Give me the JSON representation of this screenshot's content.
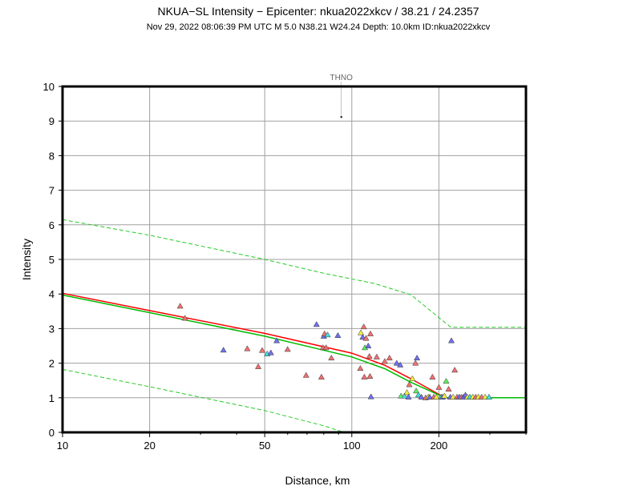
{
  "chart_data": {
    "type": "scatter",
    "title": "NKUA−SL Intensity −  Epicenter: nkua2022xkcv / 38.21 / 24.2357",
    "subtitle": "Nov 29, 2022 08:06:39 PM UTC   M 5.0   N38.21 W24.24   Depth: 10.0km   ID:nkua2022xkcv",
    "xlabel": "Distance, km",
    "ylabel": "Intensity",
    "xscale": "log",
    "xlim": [
      10,
      400
    ],
    "ylim": [
      0,
      10
    ],
    "xticks": [
      10,
      20,
      50,
      100,
      200
    ],
    "yticks": [
      0,
      1,
      2,
      3,
      4,
      5,
      6,
      7,
      8,
      9,
      10
    ],
    "grid": true,
    "colors": {
      "red_line": "#ff0000",
      "green_line": "#00bb00",
      "dashed": "#22cc22",
      "tri_red": "#f07070",
      "tri_blue": "#7070f0",
      "tri_yellow": "#f0f040",
      "tri_cyan": "#40e0e0",
      "tri_green": "#60f060"
    },
    "annotations": [
      {
        "text": "THNO",
        "x": 92,
        "y": 9.1
      }
    ],
    "lines": [
      {
        "style": "solid",
        "color": "#ff0000",
        "x": [
          10,
          20,
          50,
          100,
          130,
          160,
          210,
          400
        ],
        "y": [
          4.02,
          3.52,
          2.86,
          2.29,
          1.94,
          1.55,
          1.0,
          1.0
        ]
      },
      {
        "style": "solid",
        "color": "#00bb00",
        "x": [
          10,
          20,
          50,
          100,
          130,
          160,
          210,
          400
        ],
        "y": [
          3.97,
          3.46,
          2.78,
          2.18,
          1.84,
          1.45,
          1.0,
          1.0
        ]
      },
      {
        "style": "dashed",
        "color": "#22cc22",
        "x": [
          10,
          20,
          50,
          80,
          120,
          160,
          220,
          400
        ],
        "y": [
          6.15,
          5.7,
          5.0,
          4.6,
          4.3,
          3.98,
          3.04,
          3.04
        ]
      },
      {
        "style": "dashed",
        "color": "#22cc22",
        "x": [
          10,
          20,
          50,
          80,
          94
        ],
        "y": [
          1.82,
          1.32,
          0.63,
          0.19,
          0.0
        ]
      }
    ],
    "points": [
      {
        "x": 92,
        "y": 9.12,
        "c": "dot"
      },
      {
        "x": 25.5,
        "y": 3.65,
        "c": "red"
      },
      {
        "x": 26.5,
        "y": 3.3,
        "c": "red"
      },
      {
        "x": 36,
        "y": 2.38,
        "c": "blue"
      },
      {
        "x": 43.5,
        "y": 2.42,
        "c": "red"
      },
      {
        "x": 47.5,
        "y": 1.9,
        "c": "red"
      },
      {
        "x": 49,
        "y": 2.37,
        "c": "red"
      },
      {
        "x": 51,
        "y": 2.27,
        "c": "cyan"
      },
      {
        "x": 52.5,
        "y": 2.3,
        "c": "blue"
      },
      {
        "x": 55,
        "y": 2.65,
        "c": "blue"
      },
      {
        "x": 60,
        "y": 2.4,
        "c": "red"
      },
      {
        "x": 69.5,
        "y": 1.65,
        "c": "red"
      },
      {
        "x": 75.5,
        "y": 3.12,
        "c": "blue"
      },
      {
        "x": 78.5,
        "y": 1.6,
        "c": "red"
      },
      {
        "x": 79.5,
        "y": 2.45,
        "c": "red"
      },
      {
        "x": 80,
        "y": 2.78,
        "c": "blue"
      },
      {
        "x": 80.5,
        "y": 2.85,
        "c": "red"
      },
      {
        "x": 81.5,
        "y": 2.45,
        "c": "red"
      },
      {
        "x": 82.5,
        "y": 2.82,
        "c": "cyan"
      },
      {
        "x": 85,
        "y": 2.15,
        "c": "red"
      },
      {
        "x": 89.5,
        "y": 2.8,
        "c": "blue"
      },
      {
        "x": 107,
        "y": 1.85,
        "c": "red"
      },
      {
        "x": 107.5,
        "y": 2.88,
        "c": "yellow"
      },
      {
        "x": 109,
        "y": 2.75,
        "c": "blue"
      },
      {
        "x": 110,
        "y": 3.05,
        "c": "red"
      },
      {
        "x": 110.5,
        "y": 1.6,
        "c": "red"
      },
      {
        "x": 111,
        "y": 2.45,
        "c": "green"
      },
      {
        "x": 112,
        "y": 2.72,
        "c": "red"
      },
      {
        "x": 114,
        "y": 2.5,
        "c": "blue"
      },
      {
        "x": 115,
        "y": 2.2,
        "c": "red"
      },
      {
        "x": 115.5,
        "y": 1.62,
        "c": "red"
      },
      {
        "x": 116,
        "y": 2.85,
        "c": "red"
      },
      {
        "x": 116.5,
        "y": 1.03,
        "c": "blue"
      },
      {
        "x": 122,
        "y": 2.18,
        "c": "red"
      },
      {
        "x": 130,
        "y": 2.05,
        "c": "red"
      },
      {
        "x": 135,
        "y": 2.15,
        "c": "red"
      },
      {
        "x": 143,
        "y": 2.0,
        "c": "blue"
      },
      {
        "x": 147,
        "y": 1.95,
        "c": "blue"
      },
      {
        "x": 148,
        "y": 1.05,
        "c": "green"
      },
      {
        "x": 152,
        "y": 1.05,
        "c": "cyan"
      },
      {
        "x": 155,
        "y": 1.15,
        "c": "yellow"
      },
      {
        "x": 157,
        "y": 1.02,
        "c": "blue"
      },
      {
        "x": 158,
        "y": 1.38,
        "c": "red"
      },
      {
        "x": 162,
        "y": 1.55,
        "c": "yellow"
      },
      {
        "x": 166,
        "y": 2.0,
        "c": "red"
      },
      {
        "x": 167,
        "y": 1.2,
        "c": "green"
      },
      {
        "x": 168,
        "y": 2.15,
        "c": "blue"
      },
      {
        "x": 170,
        "y": 1.08,
        "c": "cyan"
      },
      {
        "x": 174,
        "y": 1.02,
        "c": "blue"
      },
      {
        "x": 180,
        "y": 1.0,
        "c": "red"
      },
      {
        "x": 184,
        "y": 1.02,
        "c": "yellow"
      },
      {
        "x": 186,
        "y": 1.02,
        "c": "blue"
      },
      {
        "x": 190,
        "y": 1.6,
        "c": "red"
      },
      {
        "x": 192,
        "y": 1.02,
        "c": "red"
      },
      {
        "x": 196,
        "y": 1.02,
        "c": "yellow"
      },
      {
        "x": 200,
        "y": 1.3,
        "c": "red"
      },
      {
        "x": 204,
        "y": 1.02,
        "c": "cyan"
      },
      {
        "x": 206,
        "y": 1.02,
        "c": "blue"
      },
      {
        "x": 209,
        "y": 1.05,
        "c": "yellow"
      },
      {
        "x": 212,
        "y": 1.48,
        "c": "green"
      },
      {
        "x": 216,
        "y": 1.25,
        "c": "red"
      },
      {
        "x": 219,
        "y": 1.02,
        "c": "blue"
      },
      {
        "x": 221,
        "y": 2.65,
        "c": "blue"
      },
      {
        "x": 224,
        "y": 1.02,
        "c": "yellow"
      },
      {
        "x": 227,
        "y": 1.8,
        "c": "red"
      },
      {
        "x": 231,
        "y": 1.02,
        "c": "red"
      },
      {
        "x": 235,
        "y": 1.02,
        "c": "blue"
      },
      {
        "x": 239,
        "y": 1.02,
        "c": "red"
      },
      {
        "x": 243,
        "y": 1.02,
        "c": "blue"
      },
      {
        "x": 247,
        "y": 1.08,
        "c": "blue"
      },
      {
        "x": 251,
        "y": 1.02,
        "c": "yellow"
      },
      {
        "x": 256,
        "y": 1.02,
        "c": "cyan"
      },
      {
        "x": 262,
        "y": 1.02,
        "c": "yellow"
      },
      {
        "x": 268,
        "y": 1.02,
        "c": "red"
      },
      {
        "x": 274,
        "y": 1.02,
        "c": "yellow"
      },
      {
        "x": 281,
        "y": 1.02,
        "c": "red"
      },
      {
        "x": 289,
        "y": 1.02,
        "c": "yellow"
      },
      {
        "x": 298,
        "y": 1.02,
        "c": "cyan"
      }
    ]
  }
}
